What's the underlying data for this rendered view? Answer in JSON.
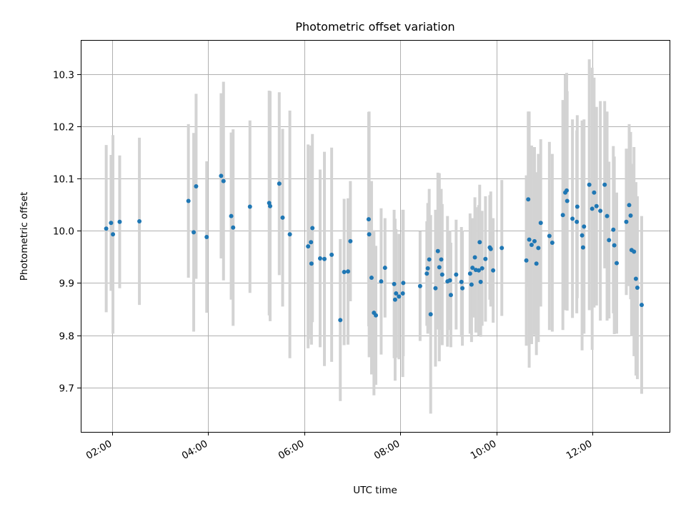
{
  "chart_data": {
    "type": "scatter",
    "title": "Photometric offset variation",
    "xlabel": "UTC time",
    "ylabel": "Photometric offset",
    "xlim": [
      1.35,
      13.6
    ],
    "ylim": [
      9.615,
      10.365
    ],
    "grid": true,
    "x_ticks": [
      {
        "value": 2,
        "label": "02:00"
      },
      {
        "value": 4,
        "label": "04:00"
      },
      {
        "value": 6,
        "label": "06:00"
      },
      {
        "value": 8,
        "label": "08:00"
      },
      {
        "value": 10,
        "label": "10:00"
      },
      {
        "value": 12,
        "label": "12:00"
      }
    ],
    "y_ticks": [
      {
        "value": 9.7,
        "label": "9.7"
      },
      {
        "value": 9.8,
        "label": "9.8"
      },
      {
        "value": 9.9,
        "label": "9.9"
      },
      {
        "value": 10.0,
        "label": "10.0"
      },
      {
        "value": 10.1,
        "label": "10.1"
      },
      {
        "value": 10.2,
        "label": "10.2"
      },
      {
        "value": 10.3,
        "label": "10.3"
      }
    ],
    "series": [
      {
        "name": "offset",
        "marker_color": "#1f77b4",
        "errorbar_color": "#d3d3d3",
        "points": [
          [
            1.88,
            10.004,
            0.16
          ],
          [
            1.98,
            10.015,
            0.13
          ],
          [
            2.02,
            9.993,
            0.19
          ],
          [
            2.16,
            10.017,
            0.127
          ],
          [
            2.57,
            10.018,
            0.16
          ],
          [
            3.59,
            10.057,
            0.147
          ],
          [
            3.7,
            9.997,
            0.19
          ],
          [
            3.75,
            10.085,
            0.177
          ],
          [
            3.97,
            9.988,
            0.145
          ],
          [
            4.27,
            10.105,
            0.158
          ],
          [
            4.32,
            10.095,
            0.19
          ],
          [
            4.48,
            10.028,
            0.16
          ],
          [
            4.52,
            10.006,
            0.188
          ],
          [
            4.87,
            10.046,
            0.165
          ],
          [
            5.27,
            10.053,
            0.215
          ],
          [
            5.29,
            10.047,
            0.22
          ],
          [
            5.48,
            10.09,
            0.175
          ],
          [
            5.55,
            10.025,
            0.17
          ],
          [
            5.7,
            9.993,
            0.237
          ],
          [
            6.08,
            9.97,
            0.195
          ],
          [
            6.14,
            9.978,
            0.185
          ],
          [
            6.15,
            9.937,
            0.155
          ],
          [
            6.17,
            10.005,
            0.18
          ],
          [
            6.33,
            9.947,
            0.17
          ],
          [
            6.42,
            9.946,
            0.205
          ],
          [
            6.57,
            9.954,
            0.205
          ],
          [
            6.75,
            9.829,
            0.155
          ],
          [
            6.83,
            9.921,
            0.14
          ],
          [
            6.91,
            9.922,
            0.14
          ],
          [
            6.96,
            9.98,
            0.115
          ],
          [
            7.34,
            10.022,
            0.205
          ],
          [
            7.35,
            9.993,
            0.235
          ],
          [
            7.4,
            9.91,
            0.185
          ],
          [
            7.45,
            9.843,
            0.158
          ],
          [
            7.49,
            9.838,
            0.133
          ],
          [
            7.6,
            9.903,
            0.14
          ],
          [
            7.68,
            9.929,
            0.095
          ],
          [
            7.87,
            9.898,
            0.142
          ],
          [
            7.89,
            9.868,
            0.155
          ],
          [
            7.91,
            9.88,
            0.123
          ],
          [
            7.97,
            9.874,
            0.12
          ],
          [
            8.05,
            9.88,
            0.16
          ],
          [
            8.06,
            9.9,
            0.14
          ],
          [
            8.41,
            9.894,
            0.105
          ],
          [
            8.55,
            9.918,
            0.1
          ],
          [
            8.57,
            9.928,
            0.125
          ],
          [
            8.6,
            9.945,
            0.135
          ],
          [
            8.63,
            9.84,
            0.19
          ],
          [
            8.73,
            9.89,
            0.15
          ],
          [
            8.78,
            9.961,
            0.15
          ],
          [
            8.81,
            9.93,
            0.18
          ],
          [
            8.85,
            9.945,
            0.135
          ],
          [
            8.87,
            9.916,
            0.135
          ],
          [
            8.98,
            9.903,
            0.125
          ],
          [
            9.03,
            9.905,
            0.095
          ],
          [
            9.05,
            9.877,
            0.1
          ],
          [
            9.16,
            9.916,
            0.105
          ],
          [
            9.27,
            9.902,
            0.105
          ],
          [
            9.29,
            9.89,
            0.11
          ],
          [
            9.45,
            9.918,
            0.115
          ],
          [
            9.48,
            9.897,
            0.11
          ],
          [
            9.5,
            9.929,
            0.095
          ],
          [
            9.55,
            9.949,
            0.115
          ],
          [
            9.57,
            9.925,
            0.12
          ],
          [
            9.63,
            9.924,
            0.125
          ],
          [
            9.65,
            9.978,
            0.11
          ],
          [
            9.67,
            9.902,
            0.105
          ],
          [
            9.7,
            9.928,
            0.11
          ],
          [
            9.77,
            9.946,
            0.12
          ],
          [
            9.86,
            9.968,
            0.1
          ],
          [
            9.88,
            9.965,
            0.11
          ],
          [
            9.93,
            9.924,
            0.1
          ],
          [
            10.11,
            9.967,
            0.13
          ],
          [
            10.62,
            9.943,
            0.163
          ],
          [
            10.66,
            10.06,
            0.168
          ],
          [
            10.68,
            9.983,
            0.245
          ],
          [
            10.73,
            9.973,
            0.19
          ],
          [
            10.79,
            9.98,
            0.18
          ],
          [
            10.83,
            9.937,
            0.175
          ],
          [
            10.87,
            9.967,
            0.18
          ],
          [
            10.92,
            10.015,
            0.16
          ],
          [
            11.1,
            9.99,
            0.18
          ],
          [
            11.16,
            9.977,
            0.17
          ],
          [
            11.38,
            10.03,
            0.22
          ],
          [
            11.43,
            10.073,
            0.225
          ],
          [
            11.46,
            10.077,
            0.225
          ],
          [
            11.47,
            10.057,
            0.21
          ],
          [
            11.58,
            10.023,
            0.19
          ],
          [
            11.67,
            10.017,
            0.175
          ],
          [
            11.68,
            10.046,
            0.175
          ],
          [
            11.78,
            9.991,
            0.22
          ],
          [
            11.8,
            9.968,
            0.15
          ],
          [
            11.82,
            10.008,
            0.205
          ],
          [
            11.93,
            10.088,
            0.24
          ],
          [
            11.99,
            10.042,
            0.27
          ],
          [
            12.03,
            10.073,
            0.22
          ],
          [
            12.08,
            10.047,
            0.19
          ],
          [
            12.16,
            10.038,
            0.21
          ],
          [
            12.25,
            10.088,
            0.16
          ],
          [
            12.3,
            10.028,
            0.2
          ],
          [
            12.34,
            9.982,
            0.15
          ],
          [
            12.43,
            10.002,
            0.16
          ],
          [
            12.45,
            9.972,
            0.17
          ],
          [
            12.5,
            9.938,
            0.135
          ],
          [
            12.7,
            10.017,
            0.14
          ],
          [
            12.76,
            10.049,
            0.155
          ],
          [
            12.79,
            10.029,
            0.16
          ],
          [
            12.81,
            9.963,
            0.165
          ],
          [
            12.86,
            9.96,
            0.2
          ],
          [
            12.9,
            9.908,
            0.185
          ],
          [
            12.93,
            9.891,
            0.175
          ],
          [
            13.02,
            9.858,
            0.17
          ]
        ]
      }
    ]
  }
}
